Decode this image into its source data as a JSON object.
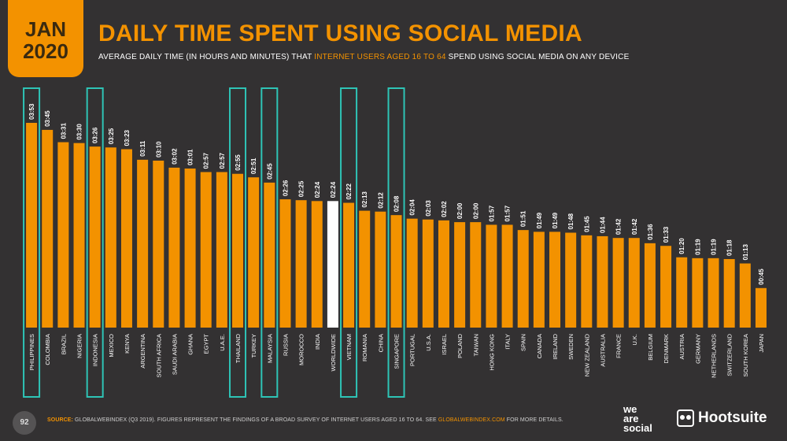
{
  "header": {
    "month": "JAN",
    "year": "2020",
    "title": "DAILY TIME SPENT USING SOCIAL MEDIA",
    "subtitle_pre": "AVERAGE DAILY TIME (IN HOURS AND MINUTES) THAT ",
    "subtitle_highlight": "INTERNET USERS AGED 16 TO 64",
    "subtitle_post": " SPEND USING SOCIAL MEDIA ON ANY DEVICE"
  },
  "footer": {
    "page_number": "92",
    "source_label": "SOURCE:",
    "source_text": " GLOBALWEBINDEX (Q3 2019). FIGURES REPRESENT THE FINDINGS OF A BROAD SURVEY OF INTERNET USERS AGED 16 TO 64. SEE ",
    "source_url": "GLOBALWEBINDEX.COM",
    "source_tail": " FOR MORE DETAILS.",
    "logo_we": "we",
    "logo_are": "are",
    "logo_social": "social",
    "logo_hootsuite": "Hootsuite"
  },
  "colors": {
    "bar": "#f39200",
    "highlight_bar": "#ffffff",
    "box": "#2ec4b6",
    "background": "#333132"
  },
  "chart_data": {
    "type": "bar",
    "unit": "hh:mm",
    "categories": [
      "PHILIPPINES",
      "COLOMBIA",
      "BRAZIL",
      "NIGERIA",
      "INDONESIA",
      "MEXICO",
      "KENYA",
      "ARGENTINA",
      "SOUTH AFRICA",
      "SAUDI ARABIA",
      "GHANA",
      "EGYPT",
      "U.A.E.",
      "THAILAND",
      "TURKEY",
      "MALAYSIA",
      "RUSSIA",
      "MOROCCO",
      "INDIA",
      "WORLDWIDE",
      "VIETNAM",
      "ROMANIA",
      "CHINA",
      "SINGAPORE",
      "PORTUGAL",
      "U.S.A.",
      "ISRAEL",
      "POLAND",
      "TAIWAN",
      "HONG KONG",
      "ITALY",
      "SPAIN",
      "CANADA",
      "IRELAND",
      "SWEDEN",
      "NEW ZEALAND",
      "AUSTRALIA",
      "FRANCE",
      "U.K.",
      "BELGIUM",
      "DENMARK",
      "AUSTRIA",
      "GERMANY",
      "NETHERLANDS",
      "SWITZERLAND",
      "SOUTH KOREA",
      "JAPAN"
    ],
    "labels": [
      "03:53",
      "03:45",
      "03:31",
      "03:30",
      "03:26",
      "03:25",
      "03:23",
      "03:11",
      "03:10",
      "03:02",
      "03:01",
      "02:57",
      "02:57",
      "02:55",
      "02:51",
      "02:45",
      "02:26",
      "02:25",
      "02:24",
      "02:24",
      "02:22",
      "02:13",
      "02:12",
      "02:08",
      "02:04",
      "02:03",
      "02:02",
      "02:00",
      "02:00",
      "01:57",
      "01:57",
      "01:51",
      "01:49",
      "01:49",
      "01:48",
      "01:45",
      "01:44",
      "01:42",
      "01:42",
      "01:36",
      "01:33",
      "01:20",
      "01:19",
      "01:19",
      "01:18",
      "01:13",
      "00:45"
    ],
    "values_minutes": [
      233,
      225,
      211,
      210,
      206,
      205,
      203,
      191,
      190,
      182,
      181,
      177,
      177,
      175,
      171,
      165,
      146,
      145,
      144,
      144,
      142,
      133,
      132,
      128,
      124,
      123,
      122,
      120,
      120,
      117,
      117,
      111,
      109,
      109,
      108,
      105,
      104,
      102,
      102,
      96,
      93,
      80,
      79,
      79,
      78,
      73,
      45
    ],
    "highlighted_category": "WORLDWIDE",
    "boxed_categories": [
      "PHILIPPINES",
      "INDONESIA",
      "THAILAND",
      "MALAYSIA",
      "VIETNAM",
      "SINGAPORE"
    ]
  }
}
